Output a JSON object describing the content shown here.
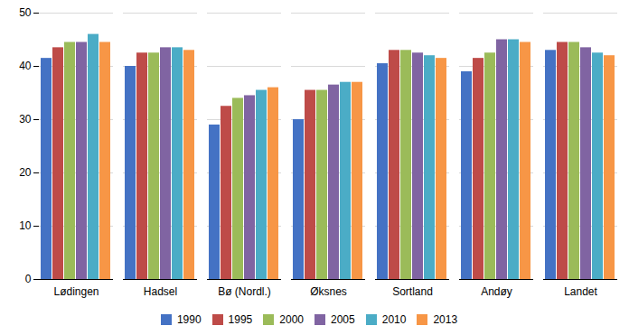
{
  "chart_data": {
    "type": "bar",
    "categories": [
      "Lødingen",
      "Hadsel",
      "Bø (Nordl.)",
      "Øksnes",
      "Sortland",
      "Andøy",
      "Landet"
    ],
    "series": [
      {
        "name": "1990",
        "color": "#4472C4",
        "values": [
          41.5,
          40.0,
          29.0,
          30.0,
          40.5,
          39.0,
          43.0
        ]
      },
      {
        "name": "1995",
        "color": "#BE4B48",
        "values": [
          43.5,
          42.5,
          32.5,
          35.5,
          43.0,
          41.5,
          44.5
        ]
      },
      {
        "name": "2000",
        "color": "#9BBB59",
        "values": [
          44.5,
          42.5,
          34.0,
          35.5,
          43.0,
          42.5,
          44.5
        ]
      },
      {
        "name": "2005",
        "color": "#8064A2",
        "values": [
          44.5,
          43.5,
          34.5,
          36.5,
          42.5,
          45.0,
          43.5
        ]
      },
      {
        "name": "2010",
        "color": "#4BACC6",
        "values": [
          46.0,
          43.5,
          35.5,
          37.0,
          42.0,
          45.0,
          42.5
        ]
      },
      {
        "name": "2013",
        "color": "#F79646",
        "values": [
          44.5,
          43.0,
          36.0,
          37.0,
          41.5,
          44.5,
          42.0
        ]
      }
    ],
    "ylim": [
      0,
      50
    ],
    "yticks": [
      0,
      10,
      20,
      30,
      40,
      50
    ],
    "grid": true,
    "legend": "bottom"
  }
}
